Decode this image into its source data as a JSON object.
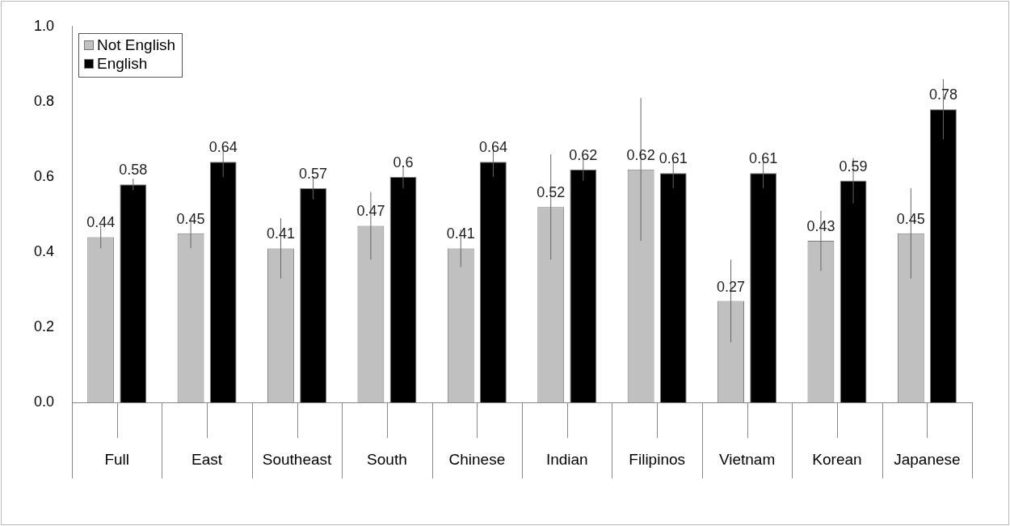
{
  "chart_data": {
    "type": "bar",
    "categories": [
      "Full",
      "East",
      "Southeast",
      "South",
      "Chinese",
      "Indian",
      "Filipinos",
      "Vietnam",
      "Korean",
      "Japanese"
    ],
    "series": [
      {
        "name": "Not English",
        "color": "#c0c0c0",
        "values": [
          0.44,
          0.45,
          0.41,
          0.47,
          0.41,
          0.52,
          0.62,
          0.27,
          0.43,
          0.45
        ],
        "errors": [
          0.03,
          0.04,
          0.08,
          0.09,
          0.05,
          0.14,
          0.19,
          0.11,
          0.08,
          0.12
        ]
      },
      {
        "name": "English",
        "color": "#000000",
        "values": [
          0.58,
          0.64,
          0.57,
          0.6,
          0.64,
          0.62,
          0.61,
          0.61,
          0.59,
          0.78
        ],
        "errors": [
          0.015,
          0.04,
          0.03,
          0.03,
          0.04,
          0.03,
          0.04,
          0.04,
          0.06,
          0.08
        ]
      }
    ],
    "ylim": [
      0,
      1
    ],
    "yticks": [
      {
        "value": 0,
        "label": "0.0"
      },
      {
        "value": 0.2,
        "label": "0.2"
      },
      {
        "value": 0.4,
        "label": "0.4"
      },
      {
        "value": 0.6,
        "label": "0.6"
      },
      {
        "value": 0.8,
        "label": "0.8"
      },
      {
        "value": 1,
        "label": "1.0"
      }
    ],
    "grid": false,
    "legend": "top left",
    "data_labels": true
  }
}
